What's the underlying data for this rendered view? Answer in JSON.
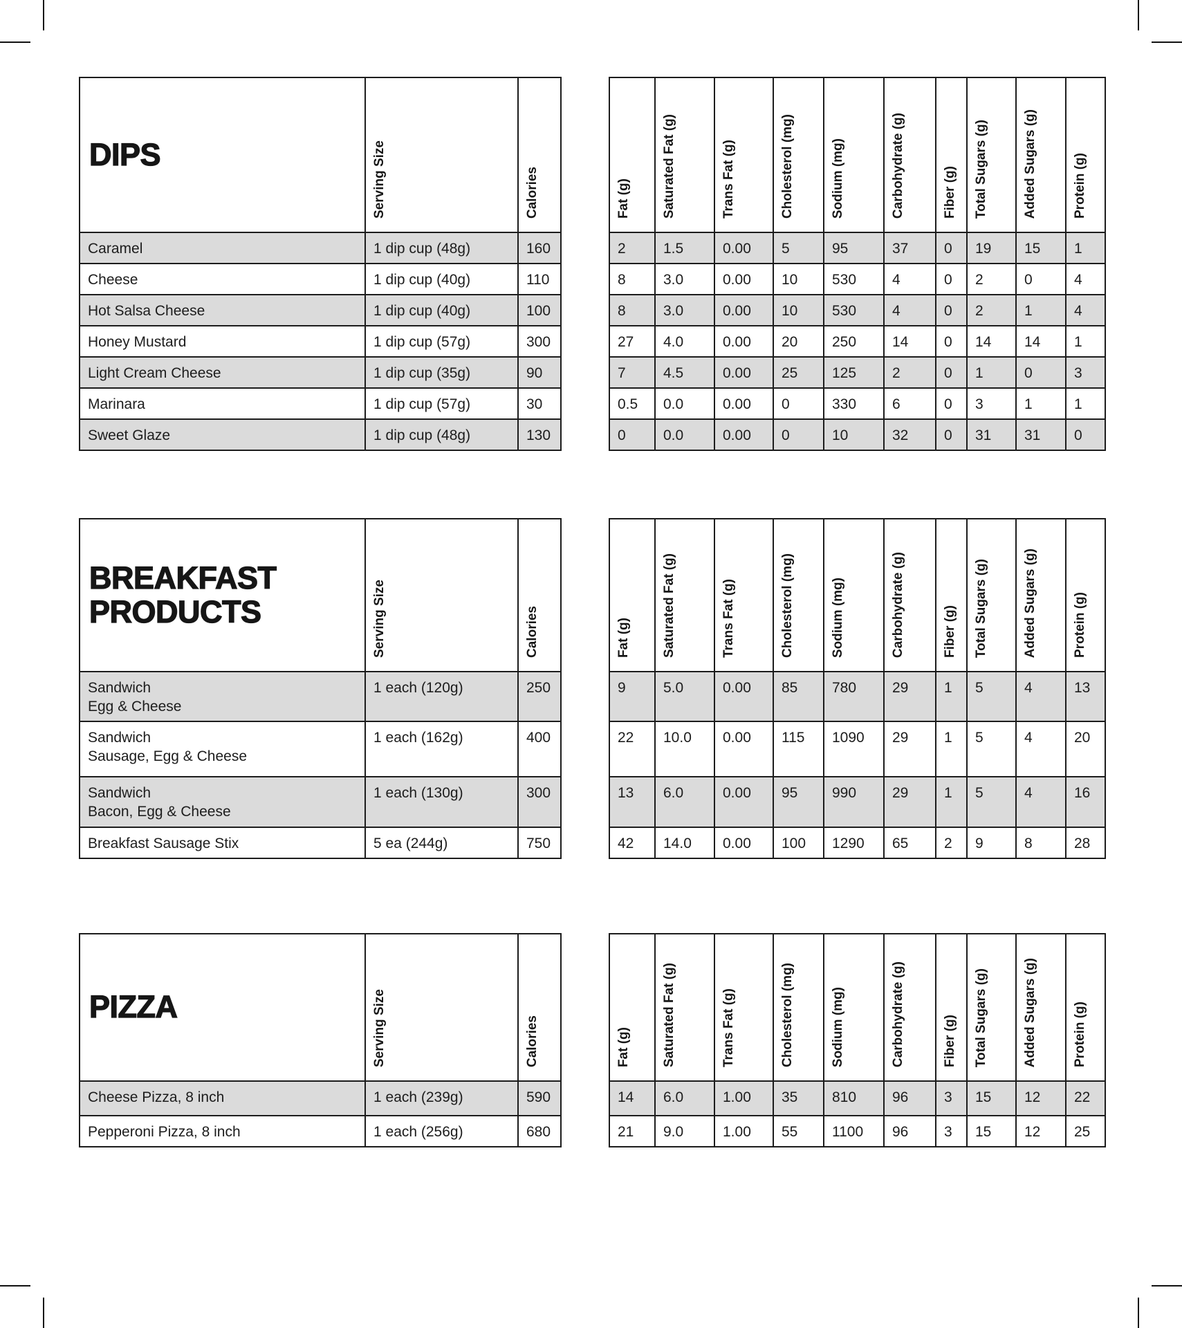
{
  "headers": {
    "serving": "Serving Size",
    "calories": "Calories",
    "nutrition": [
      "Fat (g)",
      "Saturated Fat (g)",
      "Trans Fat (g)",
      "Cholesterol (mg)",
      "Sodium (mg)",
      "Carbohydrate (g)",
      "Fiber (g)",
      "Total Sugars (g)",
      "Added Sugars (g)",
      "Protein (g)"
    ]
  },
  "sections": [
    {
      "title": "DIPS",
      "rows": [
        {
          "name": [
            "Caramel"
          ],
          "serving": "1 dip cup (48g)",
          "calories": "160",
          "values": [
            "2",
            "1.5",
            "0.00",
            "5",
            "95",
            "37",
            "0",
            "19",
            "15",
            "1"
          ]
        },
        {
          "name": [
            "Cheese"
          ],
          "serving": "1 dip cup (40g)",
          "calories": "110",
          "values": [
            "8",
            "3.0",
            "0.00",
            "10",
            "530",
            "4",
            "0",
            "2",
            "0",
            "4"
          ]
        },
        {
          "name": [
            "Hot Salsa Cheese"
          ],
          "serving": "1 dip cup (40g)",
          "calories": "100",
          "values": [
            "8",
            "3.0",
            "0.00",
            "10",
            "530",
            "4",
            "0",
            "2",
            "1",
            "4"
          ]
        },
        {
          "name": [
            "Honey Mustard"
          ],
          "serving": "1 dip cup (57g)",
          "calories": "300",
          "values": [
            "27",
            "4.0",
            "0.00",
            "20",
            "250",
            "14",
            "0",
            "14",
            "14",
            "1"
          ]
        },
        {
          "name": [
            "Light Cream Cheese"
          ],
          "serving": "1 dip cup (35g)",
          "calories": "90",
          "values": [
            "7",
            "4.5",
            "0.00",
            "25",
            "125",
            "2",
            "0",
            "1",
            "0",
            "3"
          ]
        },
        {
          "name": [
            "Marinara"
          ],
          "serving": "1 dip cup (57g)",
          "calories": "30",
          "values": [
            "0.5",
            "0.0",
            "0.00",
            "0",
            "330",
            "6",
            "0",
            "3",
            "1",
            "1"
          ]
        },
        {
          "name": [
            "Sweet Glaze"
          ],
          "serving": "1 dip cup (48g)",
          "calories": "130",
          "values": [
            "0",
            "0.0",
            "0.00",
            "0",
            "10",
            "32",
            "0",
            "31",
            "31",
            "0"
          ]
        }
      ]
    },
    {
      "title": "BREAKFAST\nPRODUCTS",
      "rows": [
        {
          "name": [
            "Sandwich",
            "Egg & Cheese"
          ],
          "serving": "1 each (120g)",
          "calories": "250",
          "values": [
            "9",
            "5.0",
            "0.00",
            "85",
            "780",
            "29",
            "1",
            "5",
            "4",
            "13"
          ]
        },
        {
          "name": [
            "Sandwich",
            "Sausage, Egg & Cheese"
          ],
          "serving": "1 each (162g)",
          "calories": "400",
          "values": [
            "22",
            "10.0",
            "0.00",
            "115",
            "1090",
            "29",
            "1",
            "5",
            "4",
            "20"
          ]
        },
        {
          "name": [
            "Sandwich",
            "Bacon, Egg & Cheese"
          ],
          "serving": "1 each (130g)",
          "calories": "300",
          "values": [
            "13",
            "6.0",
            "0.00",
            "95",
            "990",
            "29",
            "1",
            "5",
            "4",
            "16"
          ]
        },
        {
          "name": [
            "Breakfast Sausage Stix"
          ],
          "serving": "5 ea (244g)",
          "calories": "750",
          "values": [
            "42",
            "14.0",
            "0.00",
            "100",
            "1290",
            "65",
            "2",
            "9",
            "8",
            "28"
          ]
        }
      ]
    },
    {
      "title": "PIZZA",
      "rows": [
        {
          "name": [
            "Cheese Pizza, 8 inch"
          ],
          "serving": "1 each (239g)",
          "calories": "590",
          "values": [
            "14",
            "6.0",
            "1.00",
            "35",
            "810",
            "96",
            "3",
            "15",
            "12",
            "22"
          ]
        },
        {
          "name": [
            "Pepperoni Pizza, 8 inch"
          ],
          "serving": "1 each (256g)",
          "calories": "680",
          "values": [
            "21",
            "9.0",
            "1.00",
            "55",
            "1100",
            "96",
            "3",
            "15",
            "12",
            "25"
          ]
        }
      ]
    }
  ]
}
